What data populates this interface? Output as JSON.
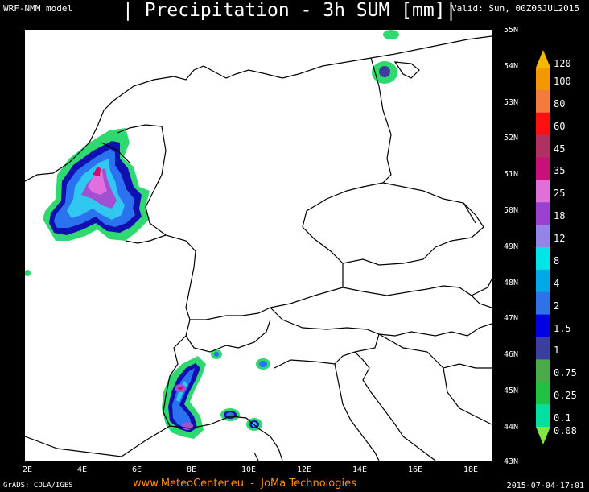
{
  "header": {
    "model": "WRF-NMM model",
    "title": "| Precipitation - 3h SUM [mm]|",
    "valid": "Valid: Sun, 00Z05JUL2015"
  },
  "axes": {
    "lat_labels": [
      "55N",
      "54N",
      "53N",
      "52N",
      "51N",
      "50N",
      "49N",
      "48N",
      "47N",
      "46N",
      "45N",
      "44N",
      "43N"
    ],
    "lon_labels": [
      "2E",
      "4E",
      "6E",
      "8E",
      "10E",
      "12E",
      "14E",
      "16E",
      "18E"
    ]
  },
  "legend": {
    "labels": [
      "120",
      "100",
      "80",
      "60",
      "45",
      "35",
      "25",
      "18",
      "12",
      "8",
      "4",
      "2",
      "1.5",
      "1",
      "0.75",
      "0.25",
      "0.1",
      "0.08"
    ],
    "colors": [
      "#f5b800",
      "#f59700",
      "#f57a3d",
      "#ff1010",
      "#b03060",
      "#c7107a",
      "#e070d6",
      "#9b40d0",
      "#9683e8",
      "#00e5e5",
      "#00a8e8",
      "#2e72e8",
      "#0000e0",
      "#3a3e9c",
      "#4aaa4a",
      "#20c040",
      "#00e0a0",
      "#80e840"
    ]
  },
  "map": {
    "colors": {
      "green": "#30d870",
      "blue": "#2a72f0",
      "darkblue": "#1010b0",
      "cyan": "#30c8f0",
      "purple": "#a050d0",
      "magenta": "#e070e0",
      "red": "#c81070"
    }
  },
  "footer": {
    "grads": "GrADS: COLA/IGES",
    "site": "www.MeteoCenter.eu  -  JoMa Technologies",
    "timestamp": "2015-07-04-17:01"
  }
}
